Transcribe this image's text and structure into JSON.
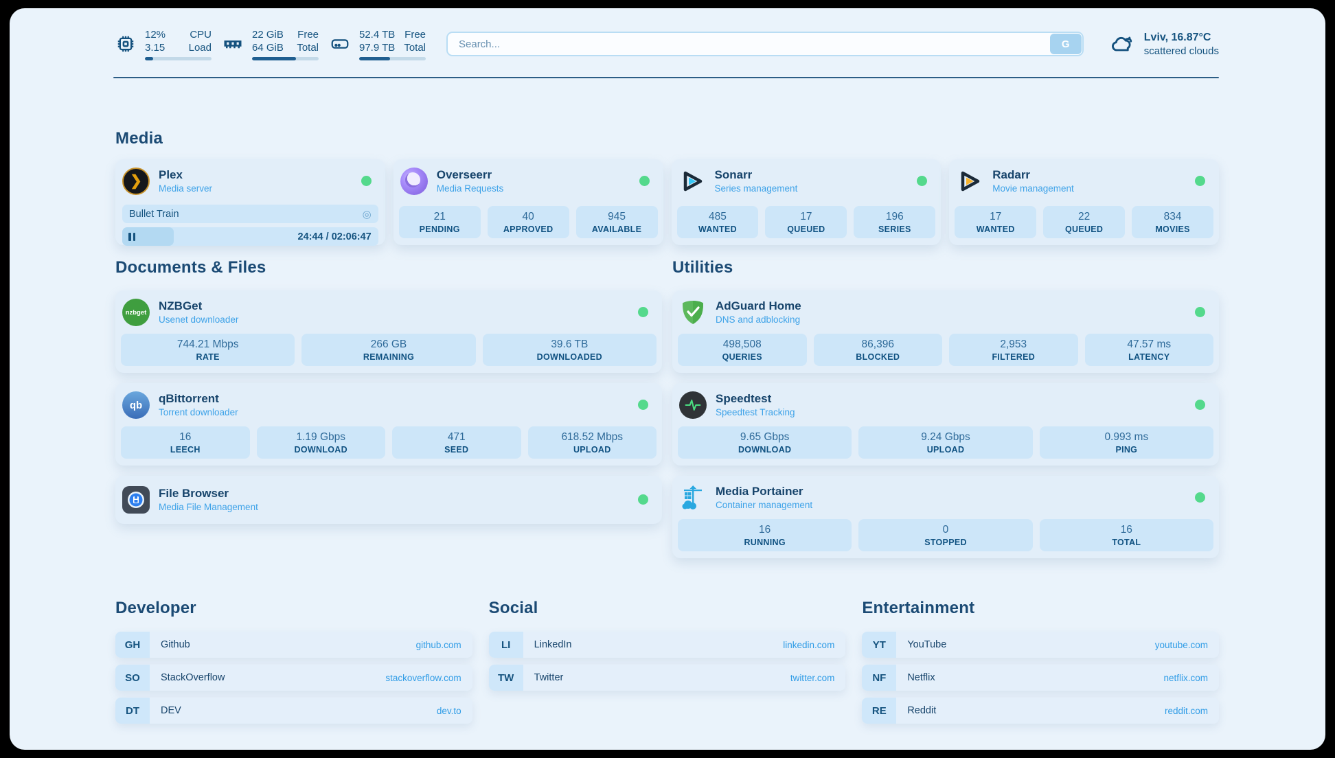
{
  "colors": {
    "page_bg": "#eaf3fb",
    "card_bg": "#e2eef9",
    "stat_box_bg": "#cde6f9",
    "text_navy": "#15537f",
    "subtitle_blue": "#3da2e8",
    "url_blue": "#2f9ce6",
    "status_green": "#54d98c"
  },
  "header": {
    "system_stats": [
      {
        "icon": "cpu-icon",
        "value_top": "12%",
        "label_top": "CPU",
        "value_bottom": "3.15",
        "label_bottom": "Load",
        "progress_pct": 12
      },
      {
        "icon": "ram-icon",
        "value_top": "22 GiB",
        "label_top": "Free",
        "value_bottom": "64 GiB",
        "label_bottom": "Total",
        "progress_pct": 66
      },
      {
        "icon": "disk-icon",
        "value_top": "52.4 TB",
        "label_top": "Free",
        "value_bottom": "97.9 TB",
        "label_bottom": "Total",
        "progress_pct": 46
      }
    ],
    "search": {
      "placeholder": "Search...",
      "button_label": "G"
    },
    "weather": {
      "icon": "cloud-icon",
      "location_temp": "Lviv, 16.87°C",
      "condition": "scattered clouds"
    }
  },
  "sections": {
    "media": {
      "title": "Media",
      "apps": [
        {
          "name": "Plex",
          "subtitle": "Media server",
          "status": "online",
          "player": {
            "title": "Bullet Train",
            "time_display": "24:44 / 02:06:47",
            "progress_pct": 20,
            "state": "paused"
          }
        },
        {
          "name": "Overseerr",
          "subtitle": "Media Requests",
          "status": "online",
          "stats": [
            {
              "value": "21",
              "label": "PENDING"
            },
            {
              "value": "40",
              "label": "APPROVED"
            },
            {
              "value": "945",
              "label": "AVAILABLE"
            }
          ]
        },
        {
          "name": "Sonarr",
          "subtitle": "Series management",
          "status": "online",
          "stats": [
            {
              "value": "485",
              "label": "WANTED"
            },
            {
              "value": "17",
              "label": "QUEUED"
            },
            {
              "value": "196",
              "label": "SERIES"
            }
          ]
        },
        {
          "name": "Radarr",
          "subtitle": "Movie management",
          "status": "online",
          "stats": [
            {
              "value": "17",
              "label": "WANTED"
            },
            {
              "value": "22",
              "label": "QUEUED"
            },
            {
              "value": "834",
              "label": "MOVIES"
            }
          ]
        }
      ]
    },
    "documents": {
      "title": "Documents & Files",
      "apps": [
        {
          "name": "NZBGet",
          "subtitle": "Usenet downloader",
          "status": "online",
          "icon_text": "nzbget",
          "stats": [
            {
              "value": "744.21 Mbps",
              "label": "RATE"
            },
            {
              "value": "266 GB",
              "label": "REMAINING"
            },
            {
              "value": "39.6 TB",
              "label": "DOWNLOADED"
            }
          ]
        },
        {
          "name": "qBittorrent",
          "subtitle": "Torrent downloader",
          "status": "online",
          "icon_text": "qb",
          "stats": [
            {
              "value": "16",
              "label": "LEECH"
            },
            {
              "value": "1.19 Gbps",
              "label": "DOWNLOAD"
            },
            {
              "value": "471",
              "label": "SEED"
            },
            {
              "value": "618.52 Mbps",
              "label": "UPLOAD"
            }
          ]
        },
        {
          "name": "File Browser",
          "subtitle": "Media File Management",
          "status": "online",
          "stats": []
        }
      ]
    },
    "utilities": {
      "title": "Utilities",
      "apps": [
        {
          "name": "AdGuard Home",
          "subtitle": "DNS and adblocking",
          "status": "online",
          "stats": [
            {
              "value": "498,508",
              "label": "QUERIES"
            },
            {
              "value": "86,396",
              "label": "BLOCKED"
            },
            {
              "value": "2,953",
              "label": "FILTERED"
            },
            {
              "value": "47.57 ms",
              "label": "LATENCY"
            }
          ]
        },
        {
          "name": "Speedtest",
          "subtitle": "Speedtest Tracking",
          "status": "online",
          "stats": [
            {
              "value": "9.65 Gbps",
              "label": "DOWNLOAD"
            },
            {
              "value": "9.24 Gbps",
              "label": "UPLOAD"
            },
            {
              "value": "0.993 ms",
              "label": "PING"
            }
          ]
        },
        {
          "name": "Media Portainer",
          "subtitle": "Container management",
          "status": "online",
          "stats": [
            {
              "value": "16",
              "label": "RUNNING"
            },
            {
              "value": "0",
              "label": "STOPPED"
            },
            {
              "value": "16",
              "label": "TOTAL"
            }
          ]
        }
      ]
    }
  },
  "bookmarks": [
    {
      "title": "Developer",
      "links": [
        {
          "abbr": "GH",
          "name": "Github",
          "url": "github.com"
        },
        {
          "abbr": "SO",
          "name": "StackOverflow",
          "url": "stackoverflow.com"
        },
        {
          "abbr": "DT",
          "name": "DEV",
          "url": "dev.to"
        }
      ]
    },
    {
      "title": "Social",
      "links": [
        {
          "abbr": "LI",
          "name": "LinkedIn",
          "url": "linkedin.com"
        },
        {
          "abbr": "TW",
          "name": "Twitter",
          "url": "twitter.com"
        }
      ]
    },
    {
      "title": "Entertainment",
      "links": [
        {
          "abbr": "YT",
          "name": "YouTube",
          "url": "youtube.com"
        },
        {
          "abbr": "NF",
          "name": "Netflix",
          "url": "netflix.com"
        },
        {
          "abbr": "RE",
          "name": "Reddit",
          "url": "reddit.com"
        }
      ]
    }
  ]
}
